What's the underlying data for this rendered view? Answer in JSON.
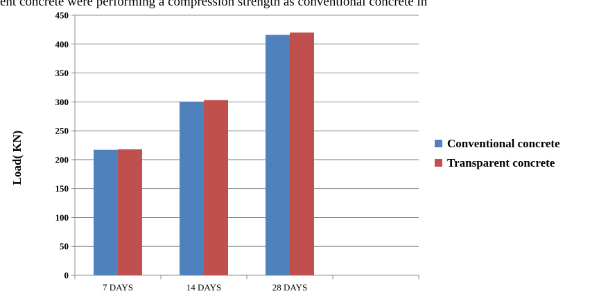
{
  "page": {
    "header_text": "ent concrete were performing a compression strength as conventional concrete in"
  },
  "chart_data": {
    "type": "bar",
    "categories": [
      "7 DAYS",
      "14 DAYS",
      "28 DAYS",
      ""
    ],
    "series": [
      {
        "name": "Conventional concrete",
        "values": [
          217,
          300,
          416,
          null
        ],
        "color": "#4F81BD"
      },
      {
        "name": "Transparent concrete",
        "values": [
          218,
          303,
          420,
          null
        ],
        "color": "#C0504D"
      }
    ],
    "title": "",
    "xlabel": "",
    "ylabel": "Load( KN)",
    "ylim": [
      0,
      450
    ],
    "yticks": [
      0,
      50,
      100,
      150,
      200,
      250,
      300,
      350,
      400,
      450
    ],
    "grid": true,
    "legend": "right"
  }
}
